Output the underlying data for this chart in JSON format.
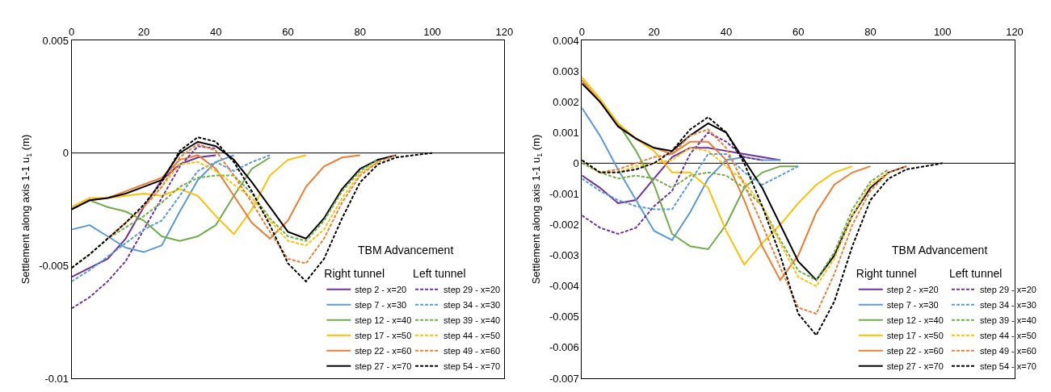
{
  "chart_data": [
    {
      "type": "line",
      "ylabel": "Settlement along axis 1-1 u$_{1}$ (m)",
      "legend_title": "TBM Advancement",
      "annotations": [
        "Right tunnel",
        "Left tunnel"
      ],
      "legend": "bottom right",
      "grid": false,
      "marker": "none",
      "x": [
        0,
        5,
        10,
        15,
        20,
        25,
        30,
        35,
        40,
        45,
        50,
        55,
        60,
        65,
        70,
        75,
        80,
        85,
        90,
        95,
        100
      ],
      "xlim": [
        0,
        120
      ],
      "xticks": [
        0,
        20,
        40,
        60,
        80,
        100,
        120
      ],
      "ylim": [
        -0.01,
        0.005
      ],
      "yticks": [
        -0.01,
        -0.005,
        0,
        0.005
      ],
      "ref_lines": [
        {
          "axis": "y",
          "value": 0,
          "color": "#000000"
        }
      ],
      "series": [
        {
          "name": "step 2 - x=20",
          "color": "#7030a0",
          "line_style": "solid",
          "values": [
            -0.0055,
            -0.0051,
            -0.0047,
            -0.0038,
            -0.0024,
            -0.0012,
            -0.0005,
            -0.0002,
            -0.0001,
            null,
            null,
            null,
            null,
            null,
            null,
            null,
            null,
            null,
            null,
            null,
            null
          ]
        },
        {
          "name": "step 7 - x=30",
          "color": "#5b9bd5",
          "line_style": "solid",
          "values": [
            -0.0034,
            -0.0032,
            -0.0037,
            -0.0042,
            -0.0044,
            -0.0041,
            -0.0026,
            -0.0012,
            -0.0004,
            -0.0001,
            null,
            null,
            null,
            null,
            null,
            null,
            null,
            null,
            null,
            null,
            null
          ]
        },
        {
          "name": "step 12 - x=40",
          "color": "#70ad47",
          "line_style": "solid",
          "values": [
            -0.0025,
            -0.0021,
            -0.0024,
            -0.0026,
            -0.003,
            -0.0037,
            -0.0039,
            -0.0037,
            -0.0032,
            -0.0019,
            -0.0007,
            -0.0002,
            null,
            null,
            null,
            null,
            null,
            null,
            null,
            null,
            null
          ]
        },
        {
          "name": "step 17 - x=50",
          "color": "#ffc000",
          "line_style": "solid",
          "values": [
            -0.0024,
            -0.002,
            -0.002,
            -0.0019,
            -0.0018,
            -0.0019,
            -0.0016,
            -0.0019,
            -0.0028,
            -0.0036,
            -0.0025,
            -0.001,
            -0.0003,
            -0.0001,
            null,
            null,
            null,
            null,
            null,
            null,
            null
          ]
        },
        {
          "name": "step 22 - x=60",
          "color": "#ed7d31",
          "line_style": "solid",
          "values": [
            -0.0025,
            -0.0021,
            -0.002,
            -0.0017,
            -0.0014,
            -0.0011,
            -0.0003,
            -0.0001,
            -0.0007,
            -0.0019,
            -0.0031,
            -0.0038,
            -0.003,
            -0.0015,
            -0.0006,
            -0.0002,
            -0.0001,
            null,
            null,
            null,
            null
          ]
        },
        {
          "name": "step 27 - x=70",
          "color": "#000000",
          "line_style": "solid",
          "values": [
            -0.0025,
            -0.0021,
            -0.002,
            -0.0018,
            -0.0015,
            -0.0012,
            0,
            0.0005,
            0.0003,
            -0.0003,
            -0.0013,
            -0.0024,
            -0.0035,
            -0.0038,
            -0.0029,
            -0.0016,
            -0.0007,
            -0.0003,
            -0.0001,
            null,
            null
          ]
        },
        {
          "name": "step 29 - x=20",
          "color": "#7030a0",
          "line_style": "dashed",
          "values": [
            -0.0069,
            -0.0064,
            -0.0057,
            -0.0048,
            -0.0034,
            -0.002,
            -0.0006,
            0.0003,
            0.0002,
            null,
            null,
            null,
            null,
            null,
            null,
            null,
            null,
            null,
            null,
            null,
            null
          ]
        },
        {
          "name": "step 34 - x=30",
          "color": "#5b9bd5",
          "line_style": "dashed",
          "values": [
            -0.0057,
            -0.0052,
            -0.0046,
            -0.004,
            -0.0034,
            -0.003,
            -0.0019,
            -0.0008,
            -0.0004,
            -0.0008,
            -0.0004,
            -0.0001,
            null,
            null,
            null,
            null,
            null,
            null,
            null,
            null,
            null
          ]
        },
        {
          "name": "step 39 - x=40",
          "color": "#70ad47",
          "line_style": "dashed",
          "values": [
            -0.0051,
            -0.0045,
            -0.0038,
            -0.0033,
            -0.0028,
            -0.0022,
            -0.0015,
            -0.0011,
            -0.001,
            -0.001,
            -0.0018,
            -0.0029,
            -0.0037,
            -0.0039,
            -0.003,
            -0.0017,
            -0.0008,
            -0.0003,
            null,
            null,
            null
          ]
        },
        {
          "name": "step 44 - x=50",
          "color": "#ffc000",
          "line_style": "dashed",
          "values": [
            null,
            null,
            null,
            null,
            -0.0024,
            -0.0015,
            -0.0005,
            -0.0004,
            -0.0008,
            -0.0014,
            -0.002,
            -0.003,
            -0.0039,
            -0.0041,
            -0.0034,
            -0.002,
            -0.0009,
            -0.0004,
            null,
            null,
            null
          ]
        },
        {
          "name": "step 49 - x=60",
          "color": "#ed7d31",
          "line_style": "dashed",
          "values": [
            null,
            null,
            -0.0038,
            -0.0031,
            -0.0024,
            -0.0015,
            -0.0002,
            0.0004,
            0.0001,
            -0.001,
            -0.0022,
            -0.0035,
            -0.0047,
            -0.0049,
            -0.0038,
            -0.0022,
            -0.001,
            -0.0004,
            -0.0001,
            null,
            null
          ]
        },
        {
          "name": "step 54 - x=70",
          "color": "#000000",
          "line_style": "dashed",
          "values": [
            -0.0051,
            -0.0045,
            -0.0038,
            -0.0031,
            -0.0023,
            -0.0013,
            0.0001,
            0.0007,
            0.0005,
            -0.0004,
            -0.0017,
            -0.0032,
            -0.0049,
            -0.0057,
            -0.0047,
            -0.0029,
            -0.0013,
            -0.0005,
            -0.0002,
            -0.0001,
            0
          ]
        }
      ]
    },
    {
      "type": "line",
      "ylabel": "Settlement along axis 1-1 u$_{1}$ (m)",
      "legend_title": "TBM Advancement",
      "annotations": [
        "Right tunnel",
        "Left tunnel"
      ],
      "legend": "bottom right",
      "grid": false,
      "marker": "none",
      "x": [
        0,
        5,
        10,
        15,
        20,
        25,
        30,
        35,
        40,
        45,
        50,
        55,
        60,
        65,
        70,
        75,
        80,
        85,
        90,
        95,
        100
      ],
      "xlim": [
        0,
        120
      ],
      "xticks": [
        0,
        20,
        40,
        60,
        80,
        100,
        120
      ],
      "ylim": [
        -0.007,
        0.004
      ],
      "yticks": [
        -0.007,
        -0.006,
        -0.005,
        -0.004,
        -0.003,
        -0.002,
        -0.001,
        0,
        0.001,
        0.002,
        0.003,
        0.004
      ],
      "ref_lines": [
        {
          "axis": "y",
          "value": 0,
          "color": "#000000"
        }
      ],
      "series": [
        {
          "name": "step 2 - x=20",
          "color": "#7030a0",
          "line_style": "solid",
          "values": [
            -0.0004,
            -0.0008,
            -0.0013,
            -0.0012,
            -0.0005,
            0.0002,
            0.0005,
            0.0005,
            0.0004,
            0.0003,
            0.0002,
            0.0001,
            null,
            null,
            null,
            null,
            null,
            null,
            null,
            null,
            null
          ]
        },
        {
          "name": "step 7 - x=30",
          "color": "#5b9bd5",
          "line_style": "solid",
          "values": [
            0.0018,
            0.0009,
            -0.0002,
            -0.0012,
            -0.0022,
            -0.0025,
            -0.0016,
            -0.0005,
            0.0001,
            0.0002,
            0.0001,
            0.0001,
            null,
            null,
            null,
            null,
            null,
            null,
            null,
            null,
            null
          ]
        },
        {
          "name": "step 12 - x=40",
          "color": "#70ad47",
          "line_style": "solid",
          "values": [
            0.0027,
            0.002,
            0.0013,
            0.0004,
            -0.0007,
            -0.0023,
            -0.0027,
            -0.0028,
            -0.002,
            -0.0008,
            -0.0003,
            -0.0001,
            -0.0001,
            null,
            null,
            null,
            null,
            null,
            null,
            null,
            null
          ]
        },
        {
          "name": "step 17 - x=50",
          "color": "#ffc000",
          "line_style": "solid",
          "values": [
            0.0028,
            0.0021,
            0.0013,
            0.0008,
            0.0004,
            -0.0003,
            -0.0003,
            -0.0008,
            -0.0022,
            -0.0033,
            -0.0026,
            -0.002,
            -0.0013,
            -0.0007,
            -0.0003,
            -0.0001,
            null,
            null,
            null,
            null,
            null
          ]
        },
        {
          "name": "step 22 - x=60",
          "color": "#ed7d31",
          "line_style": "solid",
          "values": [
            0.0027,
            0.002,
            0.0012,
            0.0008,
            0.0005,
            0.0003,
            0.0007,
            0.0007,
            0.0001,
            -0.0012,
            -0.0027,
            -0.0038,
            -0.003,
            -0.0016,
            -0.0007,
            -0.0003,
            -0.0001,
            null,
            null,
            null,
            null
          ]
        },
        {
          "name": "step 27 - x=70",
          "color": "#000000",
          "line_style": "solid",
          "values": [
            0.0026,
            0.002,
            0.0012,
            0.0008,
            0.0005,
            0.0004,
            0.0009,
            0.0013,
            0.001,
            0.0001,
            -0.0008,
            -0.002,
            -0.0032,
            -0.0038,
            -0.003,
            -0.0017,
            -0.0008,
            -0.0003,
            -0.0001,
            null,
            null
          ]
        },
        {
          "name": "step 29 - x=20",
          "color": "#7030a0",
          "line_style": "dashed",
          "values": [
            -0.0017,
            -0.0021,
            -0.0023,
            -0.0021,
            -0.0014,
            -0.0009,
            0.0003,
            0.001,
            0.0007,
            0.0002,
            0.0001,
            null,
            null,
            null,
            null,
            null,
            null,
            null,
            null,
            null,
            null
          ]
        },
        {
          "name": "step 34 - x=30",
          "color": "#5b9bd5",
          "line_style": "dashed",
          "values": [
            -0.0005,
            -0.0009,
            -0.0012,
            -0.0014,
            -0.0015,
            -0.0015,
            -0.0006,
            0.0003,
            0.0003,
            -0.0003,
            -0.0007,
            -0.0004,
            -0.0001,
            null,
            null,
            null,
            null,
            null,
            null,
            null,
            null
          ]
        },
        {
          "name": "step 39 - x=40",
          "color": "#70ad47",
          "line_style": "dashed",
          "values": [
            0,
            -0.0003,
            -0.0005,
            -0.0004,
            -0.0005,
            -0.0008,
            -0.0004,
            -0.0003,
            -0.0004,
            -0.0008,
            -0.0014,
            -0.0025,
            -0.0035,
            -0.0038,
            -0.0029,
            -0.0015,
            -0.0006,
            -0.0002,
            null,
            null,
            null
          ]
        },
        {
          "name": "step 44 - x=50",
          "color": "#ffc000",
          "line_style": "dashed",
          "values": [
            0.0001,
            -0.0003,
            -0.0003,
            -0.0001,
            0,
            0.0001,
            0.0005,
            0.0004,
            -0.0001,
            -0.0006,
            -0.0014,
            -0.0026,
            -0.0037,
            -0.004,
            -0.0031,
            -0.0017,
            -0.0007,
            -0.0003,
            null,
            null,
            null
          ]
        },
        {
          "name": "step 49 - x=60",
          "color": "#ed7d31",
          "line_style": "dashed",
          "values": [
            0.0001,
            -0.0003,
            -0.0002,
            0,
            0.0002,
            0.0003,
            0.0009,
            0.0011,
            0.0005,
            -0.0007,
            -0.002,
            -0.0034,
            -0.0047,
            -0.0049,
            -0.0036,
            -0.002,
            -0.0009,
            -0.0003,
            -0.0001,
            null,
            null
          ]
        },
        {
          "name": "step 54 - x=70",
          "color": "#000000",
          "line_style": "dashed",
          "values": [
            0.0001,
            -0.0003,
            -0.0003,
            -0.0002,
            0,
            0.0004,
            0.0011,
            0.0015,
            0.001,
            0,
            -0.0014,
            -0.003,
            -0.0049,
            -0.0056,
            -0.0045,
            -0.0027,
            -0.0012,
            -0.0005,
            -0.0002,
            -0.0001,
            0
          ]
        }
      ]
    }
  ]
}
